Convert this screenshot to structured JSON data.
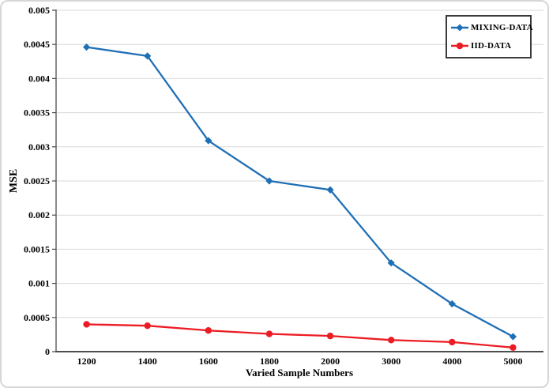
{
  "chart_data": {
    "type": "line",
    "title": "",
    "xlabel": "Varied Sample Numbers",
    "ylabel": "MSE",
    "categories": [
      "1200",
      "1400",
      "1600",
      "1800",
      "2000",
      "3000",
      "4000",
      "5000"
    ],
    "ylim": [
      0,
      0.005
    ],
    "yticks": [
      {
        "label": "0",
        "value": 0
      },
      {
        "label": "0.0005",
        "value": 0.0005
      },
      {
        "label": "0.001",
        "value": 0.001
      },
      {
        "label": "0.0015",
        "value": 0.0015
      },
      {
        "label": "0.002",
        "value": 0.002
      },
      {
        "label": "0.0025",
        "value": 0.0025
      },
      {
        "label": "0.003",
        "value": 0.003
      },
      {
        "label": "0.0035",
        "value": 0.0035
      },
      {
        "label": "0.004",
        "value": 0.004
      },
      {
        "label": "0.0045",
        "value": 0.0045
      },
      {
        "label": "0.005",
        "value": 0.005
      }
    ],
    "grid": "horizontal",
    "legend_position": "top-right",
    "series": [
      {
        "name": "MIXING-DATA",
        "color": "#1f6fb5",
        "marker": "diamond",
        "values": [
          0.00446,
          0.00433,
          0.00309,
          0.0025,
          0.00237,
          0.0013,
          0.0007,
          0.00022
        ]
      },
      {
        "name": "IID-DATA",
        "color": "#ec1c24",
        "marker": "circle",
        "values": [
          0.0004,
          0.00038,
          0.00031,
          0.00026,
          0.00023,
          0.00017,
          0.00014,
          6e-05
        ]
      }
    ],
    "colors": {
      "gridline": "#d9d9d9",
      "axis": "#4d4d4d",
      "legend_border": "#3a3a3a"
    }
  }
}
